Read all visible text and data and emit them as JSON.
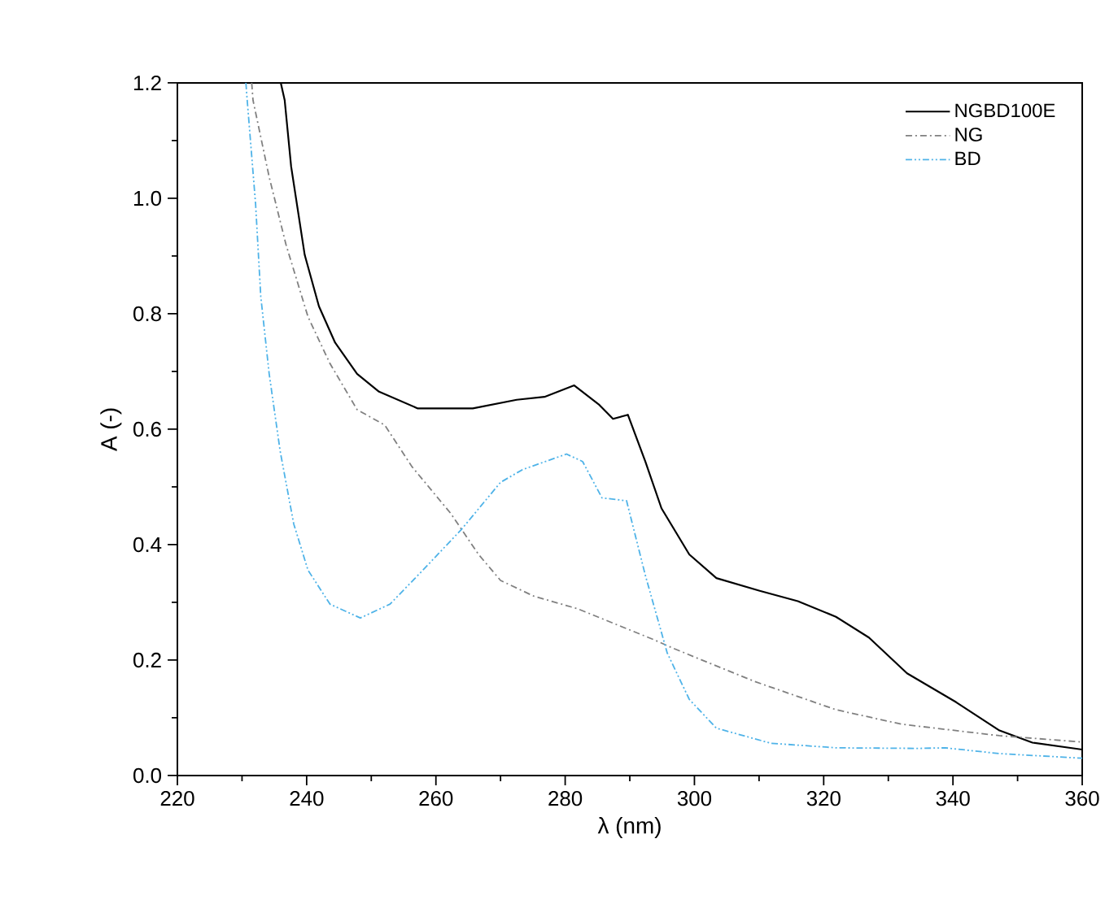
{
  "chart_data": {
    "type": "line",
    "xlabel": "λ (nm)",
    "ylabel": "A (-)",
    "xlim": [
      220,
      360
    ],
    "xticks": [
      220,
      240,
      260,
      280,
      300,
      320,
      340,
      360
    ],
    "ylim": [
      0,
      1.2
    ],
    "yticks": [
      {
        "value": 0,
        "label": "0.0"
      },
      {
        "value": 0.2,
        "label": "0.2"
      },
      {
        "value": 0.4,
        "label": "0.4"
      },
      {
        "value": 0.6,
        "label": "0.6"
      },
      {
        "value": 0.8,
        "label": "0.8"
      },
      {
        "value": 1.0,
        "label": "1.0"
      },
      {
        "value": 1.2,
        "label": "1.2"
      }
    ],
    "legend": "top right",
    "marker": "none",
    "series": [
      {
        "name": "NGBD100E",
        "color": "#000000",
        "line_style": "solid",
        "x": [
          236.0,
          236.6,
          237.6,
          239.7,
          241.9,
          244.4,
          247.8,
          251.2,
          257.2,
          265.7,
          272.5,
          276.8,
          281.4,
          285.3,
          287.4,
          289.7,
          292.4,
          294.9,
          299.2,
          303.4,
          310.1,
          316.0,
          321.9,
          327.0,
          332.9,
          340.5,
          347.2,
          352.3,
          360.0
        ],
        "values": [
          1.2,
          1.17,
          1.055,
          0.902,
          0.813,
          0.75,
          0.696,
          0.665,
          0.636,
          0.636,
          0.651,
          0.656,
          0.676,
          0.642,
          0.618,
          0.625,
          0.544,
          0.463,
          0.383,
          0.342,
          0.32,
          0.302,
          0.275,
          0.239,
          0.177,
          0.127,
          0.078,
          0.057,
          0.045
        ]
      },
      {
        "name": "NG",
        "color": "#808080",
        "line_style": "dashdot",
        "x": [
          231.5,
          231.7,
          234.2,
          236.8,
          240.2,
          243.6,
          247.8,
          252.1,
          256.3,
          262.3,
          266.6,
          270.0,
          275.1,
          281.9,
          293.8,
          296.6,
          309.3,
          321.9,
          332.0,
          347.2,
          360.0
        ],
        "values": [
          1.2,
          1.17,
          1.037,
          0.92,
          0.795,
          0.714,
          0.634,
          0.607,
          0.535,
          0.454,
          0.383,
          0.338,
          0.311,
          0.289,
          0.235,
          0.221,
          0.163,
          0.114,
          0.089,
          0.069,
          0.058
        ]
      },
      {
        "name": "BD",
        "color": "#4fb3e8",
        "line_style": "dashdotdot",
        "x": [
          230.6,
          230.8,
          232.1,
          232.9,
          234.2,
          235.9,
          238.0,
          240.2,
          243.6,
          248.3,
          252.9,
          258.0,
          264.0,
          270.0,
          273.4,
          280.2,
          282.7,
          285.7,
          289.5,
          292.4,
          295.8,
          299.2,
          303.4,
          311.8,
          321.9,
          334.6,
          338.8,
          347.2,
          360.0
        ],
        "values": [
          1.2,
          1.17,
          0.99,
          0.83,
          0.696,
          0.562,
          0.436,
          0.356,
          0.297,
          0.273,
          0.297,
          0.356,
          0.427,
          0.508,
          0.53,
          0.557,
          0.544,
          0.481,
          0.476,
          0.347,
          0.212,
          0.132,
          0.082,
          0.056,
          0.048,
          0.047,
          0.048,
          0.038,
          0.03
        ]
      }
    ]
  }
}
